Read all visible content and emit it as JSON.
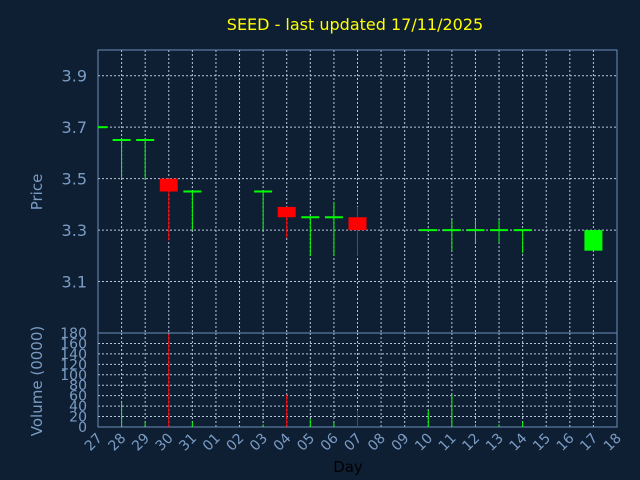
{
  "colors": {
    "background": "#0f1f33",
    "title": "#ffff00",
    "axis_text": "#7a9cc4",
    "up": "#00ff00",
    "down": "#ff0000",
    "grid": "#b8c8dc",
    "frame": "#6d8fb8"
  },
  "chart_data": {
    "type": "candlestick",
    "title": "SEED - last updated 17/11/2025",
    "ylabel": "Price",
    "xlabel": "Day",
    "volume_label": "Volume (0000)",
    "grid": true,
    "categories": [
      "27",
      "28",
      "29",
      "30",
      "31",
      "01",
      "02",
      "03",
      "04",
      "05",
      "06",
      "07",
      "08",
      "09",
      "10",
      "11",
      "12",
      "13",
      "14",
      "15",
      "16",
      "17",
      "18"
    ],
    "price_ylim": [
      2.9,
      4.0
    ],
    "price_ticks": [
      "3.1",
      "3.3",
      "3.5",
      "3.7",
      "3.9"
    ],
    "volume_ylim": [
      0,
      180
    ],
    "volume_ticks": [
      "0",
      "20",
      "40",
      "60",
      "80",
      "100",
      "120",
      "140",
      "160",
      "180"
    ],
    "candles": [
      {
        "day": "27",
        "open": 3.7,
        "high": 3.7,
        "low": 3.7,
        "close": 3.7,
        "volume": 0
      },
      {
        "day": "28",
        "open": 3.65,
        "high": 3.65,
        "low": 3.5,
        "close": 3.65,
        "volume": 48
      },
      {
        "day": "29",
        "open": 3.65,
        "high": 3.65,
        "low": 3.5,
        "close": 3.65,
        "volume": 10
      },
      {
        "day": "30",
        "open": 3.5,
        "high": 3.5,
        "low": 3.26,
        "close": 3.45,
        "volume": 178
      },
      {
        "day": "31",
        "open": 3.45,
        "high": 3.45,
        "low": 3.3,
        "close": 3.45,
        "volume": 10
      },
      {
        "day": "03",
        "open": 3.45,
        "high": 3.45,
        "low": 3.3,
        "close": 3.45,
        "volume": 5
      },
      {
        "day": "04",
        "open": 3.39,
        "high": 3.39,
        "low": 3.27,
        "close": 3.35,
        "volume": 62
      },
      {
        "day": "05",
        "open": 3.35,
        "high": 3.35,
        "low": 3.2,
        "close": 3.35,
        "volume": 15
      },
      {
        "day": "06",
        "open": 3.35,
        "high": 3.41,
        "low": 3.2,
        "close": 3.35,
        "volume": 8
      },
      {
        "day": "07",
        "open": 3.35,
        "high": 3.39,
        "low": 3.2,
        "close": 3.3,
        "volume": 32
      },
      {
        "day": "10",
        "open": 3.3,
        "high": 3.3,
        "low": 3.3,
        "close": 3.3,
        "volume": 32
      },
      {
        "day": "11",
        "open": 3.3,
        "high": 3.34,
        "low": 3.22,
        "close": 3.3,
        "volume": 62
      },
      {
        "day": "12",
        "open": 3.3,
        "high": 3.34,
        "low": 3.25,
        "close": 3.3,
        "volume": 5
      },
      {
        "day": "13",
        "open": 3.3,
        "high": 3.34,
        "low": 3.25,
        "close": 3.3,
        "volume": 5
      },
      {
        "day": "14",
        "open": 3.3,
        "high": 3.3,
        "low": 3.21,
        "close": 3.3,
        "volume": 10
      },
      {
        "day": "17",
        "open": 3.22,
        "high": 3.3,
        "low": 3.22,
        "close": 3.3,
        "volume": 0
      }
    ]
  }
}
